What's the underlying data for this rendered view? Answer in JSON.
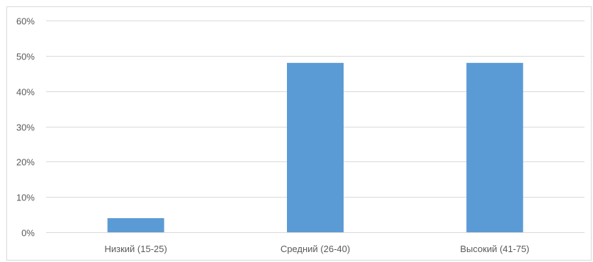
{
  "chart_data": {
    "type": "bar",
    "categories": [
      "Низкий (15-25)",
      "Средний (26-40)",
      "Высокий (41-75)"
    ],
    "values": [
      4,
      48,
      48
    ],
    "ylim": [
      0,
      60
    ],
    "yticks": [
      "0%",
      "10%",
      "20%",
      "30%",
      "40%",
      "50%",
      "60%"
    ],
    "y_unit": "%",
    "grid": true,
    "bar_color": "#5b9bd5",
    "gridline_color": "#d9d9d9",
    "text_color": "#595959"
  }
}
